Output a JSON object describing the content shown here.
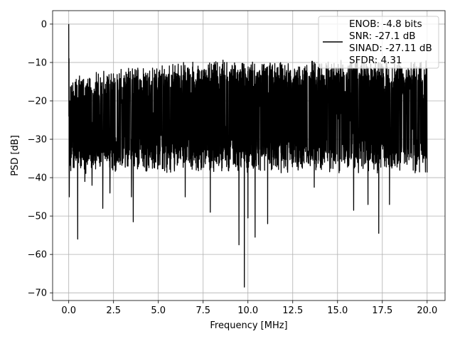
{
  "chart_data": {
    "type": "line",
    "title": "",
    "xlabel": "Frequency [MHz]",
    "ylabel": "PSD [dB]",
    "xlim": [
      -0.9,
      21.0
    ],
    "ylim": [
      -72.0,
      3.5
    ],
    "xticks": [
      0.0,
      2.5,
      5.0,
      7.5,
      10.0,
      12.5,
      15.0,
      17.5,
      20.0
    ],
    "xtick_labels": [
      "0.0",
      "2.5",
      "5.0",
      "7.5",
      "10.0",
      "12.5",
      "15.0",
      "17.5",
      "20.0"
    ],
    "yticks": [
      0,
      -10,
      -20,
      -30,
      -40,
      -50,
      -60,
      -70
    ],
    "ytick_labels": [
      "0",
      "−10",
      "−20",
      "−30",
      "−40",
      "−50",
      "−60",
      "−70"
    ],
    "grid": true,
    "legend_position": "top-right",
    "series": [
      {
        "color": "#000000",
        "x_range": [
          0.0,
          20.0
        ],
        "peak": [
          0.0,
          0.0
        ],
        "typical_top_db": -12,
        "typical_bottom_db": -35,
        "notable_dips": [
          [
            0.03,
            -45
          ],
          [
            0.5,
            -56
          ],
          [
            0.9,
            -41
          ],
          [
            1.3,
            -42
          ],
          [
            1.9,
            -48
          ],
          [
            2.3,
            -44
          ],
          [
            3.6,
            -51.5
          ],
          [
            3.5,
            -45
          ],
          [
            6.5,
            -45
          ],
          [
            7.9,
            -49
          ],
          [
            9.5,
            -57.5
          ],
          [
            9.8,
            -68.5
          ],
          [
            10.0,
            -50.5
          ],
          [
            10.4,
            -55.5
          ],
          [
            11.1,
            -52
          ],
          [
            13.7,
            -42.5
          ],
          [
            15.9,
            -48.5
          ],
          [
            16.7,
            -47
          ],
          [
            17.3,
            -54.5
          ],
          [
            17.9,
            -47
          ]
        ]
      }
    ],
    "legend": {
      "lines": [
        "ENOB: -4.8 bits",
        "SNR: -27.1 dB",
        "SINAD: -27.11 dB",
        "SFDR: 4.31"
      ]
    }
  }
}
